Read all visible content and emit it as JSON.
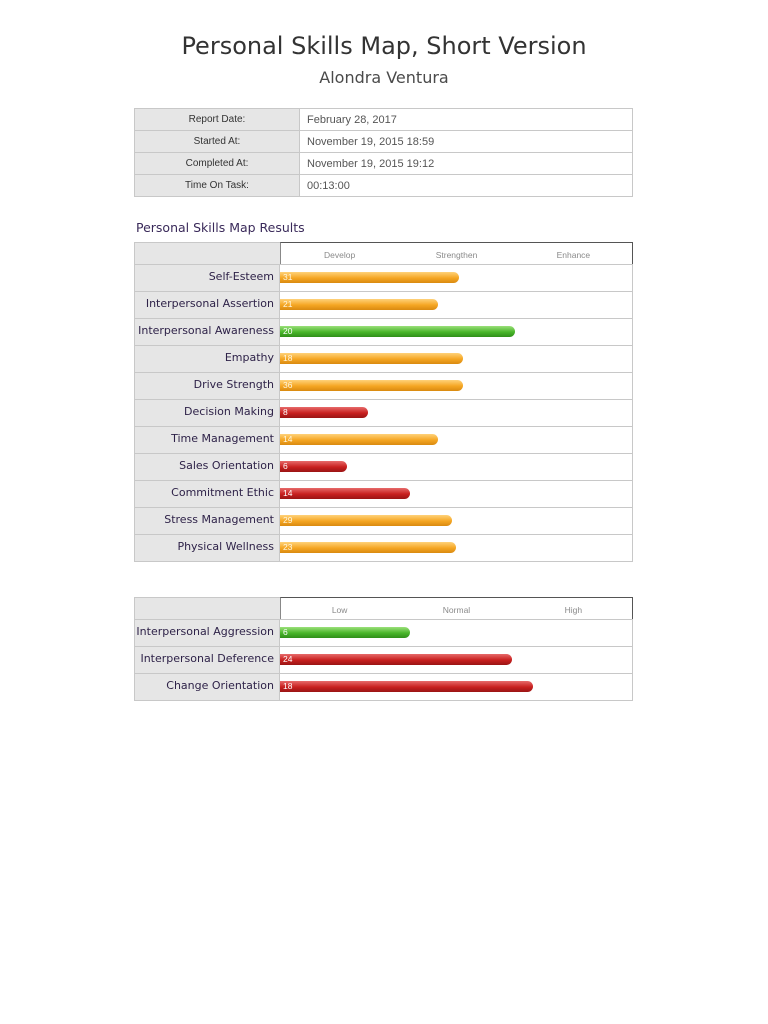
{
  "header": {
    "title": "Personal Skills Map, Short Version",
    "name": "Alondra Ventura"
  },
  "info": [
    {
      "label": "Report Date:",
      "value": "February 28, 2017"
    },
    {
      "label": "Started At:",
      "value": "November 19, 2015 18:59"
    },
    {
      "label": "Completed At:",
      "value": "November 19, 2015 19:12"
    },
    {
      "label": "Time On Task:",
      "value": "00:13:00"
    }
  ],
  "results_title": "Personal Skills Map Results",
  "colors": {
    "orange": "#f5a623",
    "green": "#49b52a",
    "red": "#c8201f"
  },
  "chart_data": [
    {
      "type": "bar",
      "orientation": "horizontal",
      "scale_labels": [
        "Develop",
        "Strengthen",
        "Enhance"
      ],
      "xlim": [
        0,
        1
      ],
      "rows": [
        {
          "name": "Self-Esteem",
          "score": "31",
          "fill": 0.51,
          "color": "orange"
        },
        {
          "name": "Interpersonal Assertion",
          "score": "21",
          "fill": 0.45,
          "color": "orange"
        },
        {
          "name": "Interpersonal Awareness",
          "score": "20",
          "fill": 0.67,
          "color": "green"
        },
        {
          "name": "Empathy",
          "score": "18",
          "fill": 0.52,
          "color": "orange"
        },
        {
          "name": "Drive Strength",
          "score": "36",
          "fill": 0.52,
          "color": "orange"
        },
        {
          "name": "Decision Making",
          "score": "8",
          "fill": 0.25,
          "color": "red"
        },
        {
          "name": "Time Management",
          "score": "14",
          "fill": 0.45,
          "color": "orange"
        },
        {
          "name": "Sales Orientation",
          "score": "6",
          "fill": 0.19,
          "color": "red"
        },
        {
          "name": "Commitment Ethic",
          "score": "14",
          "fill": 0.37,
          "color": "red"
        },
        {
          "name": "Stress Management",
          "score": "29",
          "fill": 0.49,
          "color": "orange"
        },
        {
          "name": "Physical Wellness",
          "score": "23",
          "fill": 0.5,
          "color": "orange"
        }
      ]
    },
    {
      "type": "bar",
      "orientation": "horizontal",
      "scale_labels": [
        "Low",
        "Normal",
        "High"
      ],
      "xlim": [
        0,
        1
      ],
      "rows": [
        {
          "name": "Interpersonal Aggression",
          "score": "6",
          "fill": 0.37,
          "color": "green"
        },
        {
          "name": "Interpersonal Deference",
          "score": "24",
          "fill": 0.66,
          "color": "red"
        },
        {
          "name": "Change Orientation",
          "score": "18",
          "fill": 0.72,
          "color": "red"
        }
      ]
    }
  ]
}
